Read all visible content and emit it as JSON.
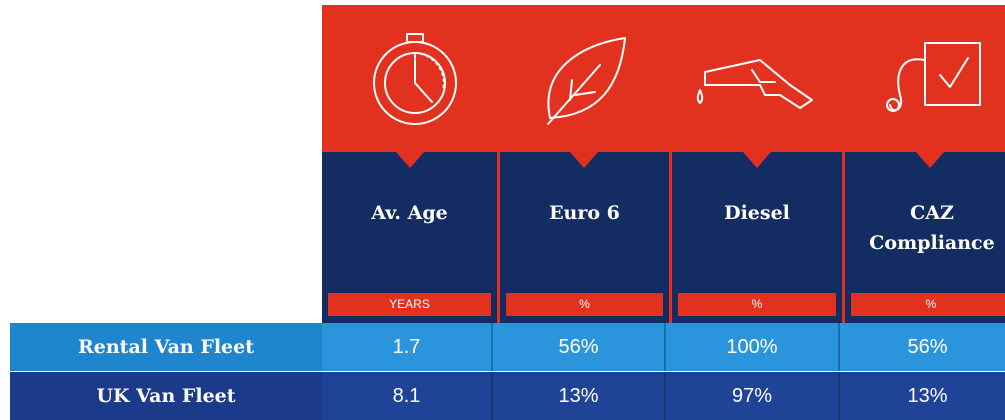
{
  "columns": [
    {
      "header": "Av. Age",
      "unit": "YEARS"
    },
    {
      "header": "Euro 6",
      "unit": "%"
    },
    {
      "header": "Diesel",
      "unit": "%"
    },
    {
      "header": "CAZ Compliance",
      "unit": "%"
    }
  ],
  "rows": [
    {
      "label": "Rental Van Fleet",
      "values": [
        "1.7",
        "56%",
        "100%",
        "56%"
      ]
    },
    {
      "label": "UK Van Fleet",
      "values": [
        "8.1",
        "13%",
        "97%",
        "13%"
      ]
    }
  ]
}
